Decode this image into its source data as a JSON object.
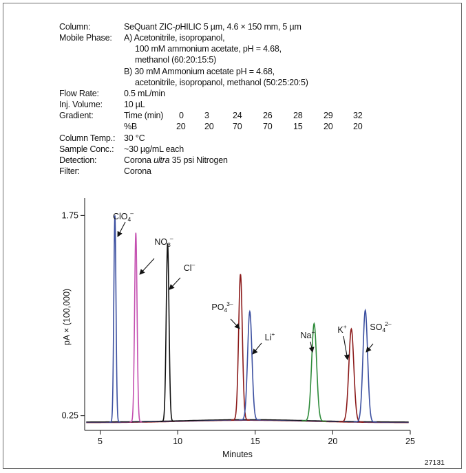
{
  "conditions": {
    "column_label": "Column:",
    "column_value": "SeQuant ZIC-pHILIC 5 µm, 4.6 × 150 mm, 5 µm",
    "column_value_parts": [
      "SeQuant ZIC-",
      "p",
      "HILIC 5 µm, 4.6 × 150 mm, 5 µm"
    ],
    "mobile_label": "Mobile Phase:",
    "mobile_lines": [
      "A) Acetonitrile, isopropanol,",
      "100 mM ammonium acetate, pH = 4.68,",
      "methanol (60:20:15:5)",
      "B) 30 mM Ammonium acetate pH = 4.68,",
      "acetonitrile, isopropanol, methanol (50:25:20:5)"
    ],
    "flow_label": "Flow Rate:",
    "flow_value": "0.5 mL/min",
    "inj_label": "Inj. Volume:",
    "inj_value": "10 µL",
    "gradient_label": "Gradient:",
    "gradient_row1_label": "Time (min)",
    "gradient_times": [
      "0",
      "3",
      "24",
      "26",
      "28",
      "29",
      "32"
    ],
    "gradient_row2_label": "%B",
    "gradient_percent": [
      "20",
      "20",
      "70",
      "70",
      "15",
      "20",
      "20"
    ],
    "temp_label": "Column Temp.:",
    "temp_value": "30 °C",
    "conc_label": "Sample Conc.:",
    "conc_value": "~30 µg/mL each",
    "detect_label": "Detection:",
    "detect_value": "Corona ultra 35 psi Nitrogen",
    "detect_value_parts": [
      "Corona ",
      "ultra",
      " 35 psi Nitrogen"
    ],
    "filter_label": "Filter:",
    "filter_value": "Corona"
  },
  "figure_id": "27131",
  "chart_data": {
    "type": "line",
    "xlabel": "Minutes",
    "ylabel": "pA × (100,000)",
    "xlim": [
      4,
      25
    ],
    "ylim": [
      0.14,
      1.86
    ],
    "x_ticks": [
      5,
      10,
      15,
      20,
      25
    ],
    "y_ticks": [
      0.25,
      1.75
    ],
    "grid": false,
    "baseline": 0.2,
    "series": [
      {
        "x": 5.95,
        "y": 1.75,
        "sigma": 0.07,
        "color": "#3b4fa0"
      },
      {
        "x": 7.3,
        "y": 1.62,
        "sigma": 0.08,
        "color": "#c44fb0"
      },
      {
        "x": 9.35,
        "y": 1.54,
        "sigma": 0.09,
        "color": "#111111"
      },
      {
        "x": 14.05,
        "y": 1.31,
        "sigma": 0.12,
        "color": "#8b1a1a"
      },
      {
        "x": 14.65,
        "y": 1.03,
        "sigma": 0.14,
        "color": "#3b4fa0"
      },
      {
        "x": 18.8,
        "y": 0.94,
        "sigma": 0.16,
        "color": "#2e8b3a"
      },
      {
        "x": 21.2,
        "y": 0.9,
        "sigma": 0.16,
        "color": "#8b1a1a"
      },
      {
        "x": 22.1,
        "y": 1.04,
        "sigma": 0.15,
        "color": "#3b4fa0"
      }
    ],
    "annotations": [
      {
        "base": "ClO",
        "sub": "4",
        "sup": "–"
      },
      {
        "base": "NO",
        "sub": "3",
        "sup": "–"
      },
      {
        "base": "Cl",
        "sub": "",
        "sup": "–"
      },
      {
        "base": "PO",
        "sub": "4",
        "sup": "3–"
      },
      {
        "base": "Li",
        "sub": "",
        "sup": "+"
      },
      {
        "base": "Na",
        "sub": "",
        "sup": "+"
      },
      {
        "base": "K",
        "sub": "",
        "sup": "+"
      },
      {
        "base": "SO",
        "sub": "4",
        "sup": "2–"
      }
    ]
  }
}
